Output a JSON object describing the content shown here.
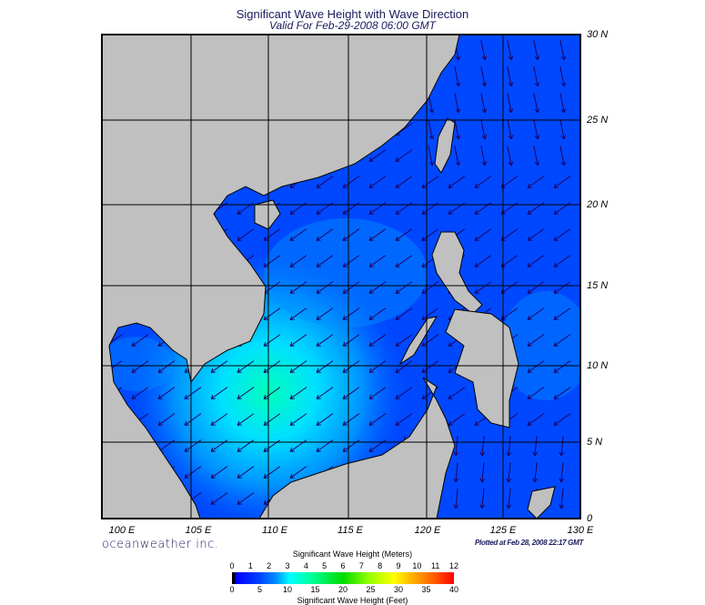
{
  "title": "Significant Wave Height with Wave Direction",
  "subtitle": "Valid For Feb-29-2008 06:00 GMT",
  "lat_labels": [
    "30 N",
    "25 N",
    "20 N",
    "15 N",
    "10 N",
    "5 N",
    "0"
  ],
  "lon_labels": [
    "100 E",
    "105 E",
    "110 E",
    "115 E",
    "120 E",
    "125 E",
    "130 E"
  ],
  "brand": "oceanweather inc.",
  "plotted": "Plotted at Feb 28, 2008 22:17 GMT",
  "colorbar": {
    "meters_title": "Significant Wave Height (Meters)",
    "meters_ticks": [
      "0",
      "1",
      "2",
      "3",
      "4",
      "5",
      "6",
      "7",
      "8",
      "9",
      "10",
      "11",
      "12"
    ],
    "feet_title": "Significant Wave Height (Feet)",
    "feet_ticks": [
      "0",
      "5",
      "10",
      "15",
      "20",
      "25",
      "30",
      "35",
      "40"
    ]
  },
  "colors": {
    "land": "#c0c0c0",
    "ocean_low": "#0040ff",
    "ocean_mid": "#00a0ff",
    "ocean_high": "#00ffdd",
    "arrow": "#200060"
  },
  "wave_direction": "toward southwest"
}
